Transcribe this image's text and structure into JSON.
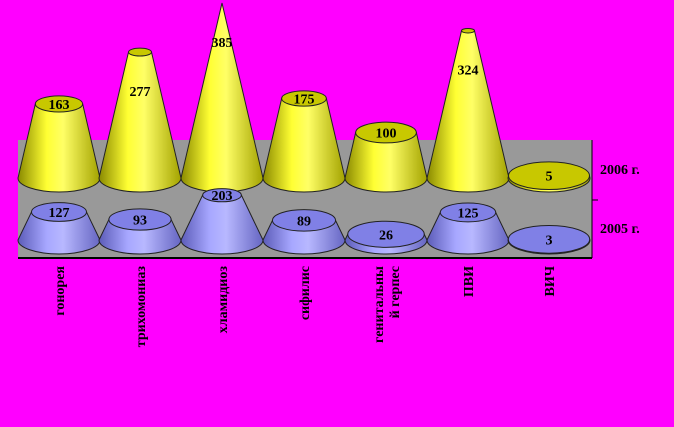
{
  "chart_data": {
    "type": "bar",
    "shape": "3d-cone",
    "categories": [
      "гонорея",
      "трихомониаз",
      "хламидиоз",
      "сифилис",
      "генитальны\nй герпес",
      "ПВИ",
      "ВИЧ"
    ],
    "series": [
      {
        "name": "2005 г.",
        "values": [
          127,
          93,
          203,
          89,
          26,
          125,
          3
        ],
        "color": "#9999FF"
      },
      {
        "name": "2006 г.",
        "values": [
          163,
          277,
          385,
          175,
          100,
          324,
          5
        ],
        "color": "#FFFF00"
      }
    ],
    "title": "",
    "xlabel": "",
    "ylabel": "",
    "gridlines": false,
    "floor_color": "#999999",
    "background": "#FF00FF"
  }
}
